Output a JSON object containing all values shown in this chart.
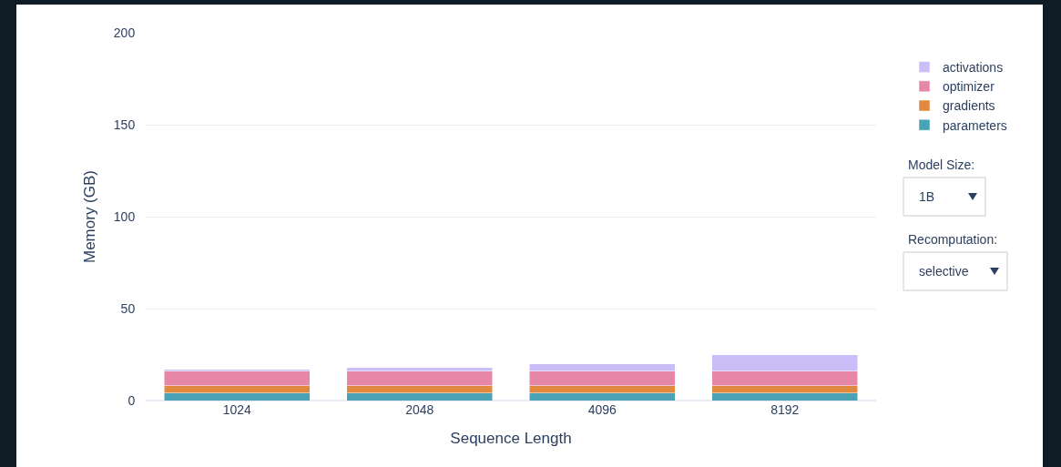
{
  "chart_data": {
    "type": "bar",
    "stacked": true,
    "xlabel": "Sequence Length",
    "ylabel": "Memory (GB)",
    "categories": [
      "1024",
      "2048",
      "4096",
      "8192"
    ],
    "series": [
      {
        "name": "parameters",
        "color": "#4aa3b5",
        "values": [
          4,
          4,
          4,
          4
        ]
      },
      {
        "name": "gradients",
        "color": "#e0893f",
        "values": [
          4,
          4,
          4,
          4
        ]
      },
      {
        "name": "optimizer",
        "color": "#e787a8",
        "values": [
          8,
          8,
          8,
          8
        ]
      },
      {
        "name": "activations",
        "color": "#cbbdf7",
        "values": [
          1,
          2,
          4,
          9
        ]
      }
    ],
    "ylim": [
      0,
      200
    ],
    "yticks": [
      0,
      50,
      100,
      150,
      200
    ],
    "grid": "y",
    "legend": "top right",
    "annotations": [
      "Model Size:",
      "1B",
      "Recomputation:",
      "selective"
    ]
  }
}
